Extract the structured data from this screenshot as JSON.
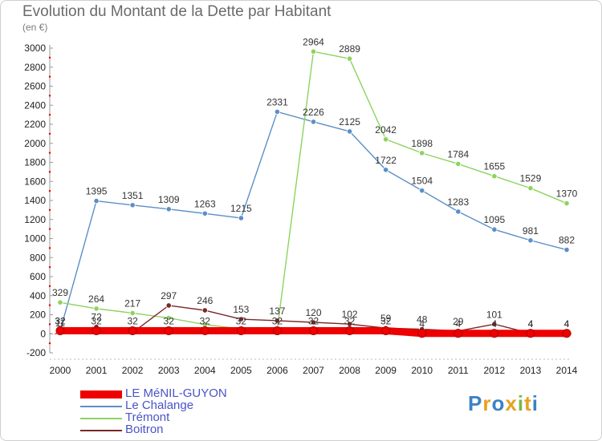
{
  "title": "Evolution du Montant de la Dette par Habitant",
  "unit": "(en €)",
  "logo": "Proxiti",
  "chart_data": {
    "type": "line",
    "title": "Evolution du Montant de la Dette par Habitant",
    "subtitle": "(en €)",
    "xlabel": "",
    "ylabel": "",
    "ylim": [
      -200,
      3000
    ],
    "yticks": [
      -200,
      0,
      200,
      400,
      600,
      800,
      1000,
      1200,
      1400,
      1600,
      1800,
      2000,
      2200,
      2400,
      2600,
      2800,
      3000
    ],
    "grid": false,
    "legend": "bottom-left",
    "x": [
      "2000",
      "2001",
      "2002",
      "2003",
      "2004",
      "2005",
      "2006",
      "2007",
      "2008",
      "2009",
      "2010",
      "2011",
      "2012",
      "2013",
      "2014"
    ],
    "series": [
      {
        "name": "LE MéNIL-GUYON",
        "color": "#ee0000",
        "values": [
          32,
          32,
          32,
          32,
          32,
          32,
          32,
          32,
          32,
          32,
          4,
          4,
          4,
          4,
          4
        ],
        "labels": [
          "32",
          "32",
          "32",
          "32",
          "32",
          "32",
          "32",
          "32",
          "32",
          "32",
          "4",
          "4",
          "4",
          "4",
          "4"
        ]
      },
      {
        "name": "Le Chalange",
        "color": "#5b8fc7",
        "values": [
          32,
          1395,
          1351,
          1309,
          1263,
          1215,
          2331,
          2226,
          2125,
          1722,
          1504,
          1283,
          1095,
          981,
          882
        ],
        "labels": [
          "32",
          "1395",
          "1351",
          "1309",
          "1263",
          "1215",
          "2331",
          "2226",
          "2125",
          "1722",
          "1504",
          "1283",
          "1095",
          "981",
          "882"
        ]
      },
      {
        "name": "Trémont",
        "color": "#8cd35f",
        "values": [
          329,
          264,
          217,
          166,
          97,
          50,
          50,
          2964,
          2889,
          2042,
          1898,
          1784,
          1655,
          1529,
          1370
        ],
        "labels": [
          "329",
          "264",
          "217",
          "",
          "",
          "",
          "",
          "2964",
          "2889",
          "2042",
          "1898",
          "1784",
          "1655",
          "1529",
          "1370"
        ]
      },
      {
        "name": "Boitron",
        "color": "#7a2828",
        "values": [
          11,
          72,
          11,
          297,
          246,
          153,
          137,
          120,
          102,
          59,
          48,
          29,
          101,
          4,
          4
        ],
        "labels": [
          "11",
          "72",
          "",
          "297",
          "246",
          "153",
          "137",
          "120",
          "102",
          "59",
          "48",
          "29",
          "101",
          "4",
          "4"
        ]
      }
    ]
  }
}
